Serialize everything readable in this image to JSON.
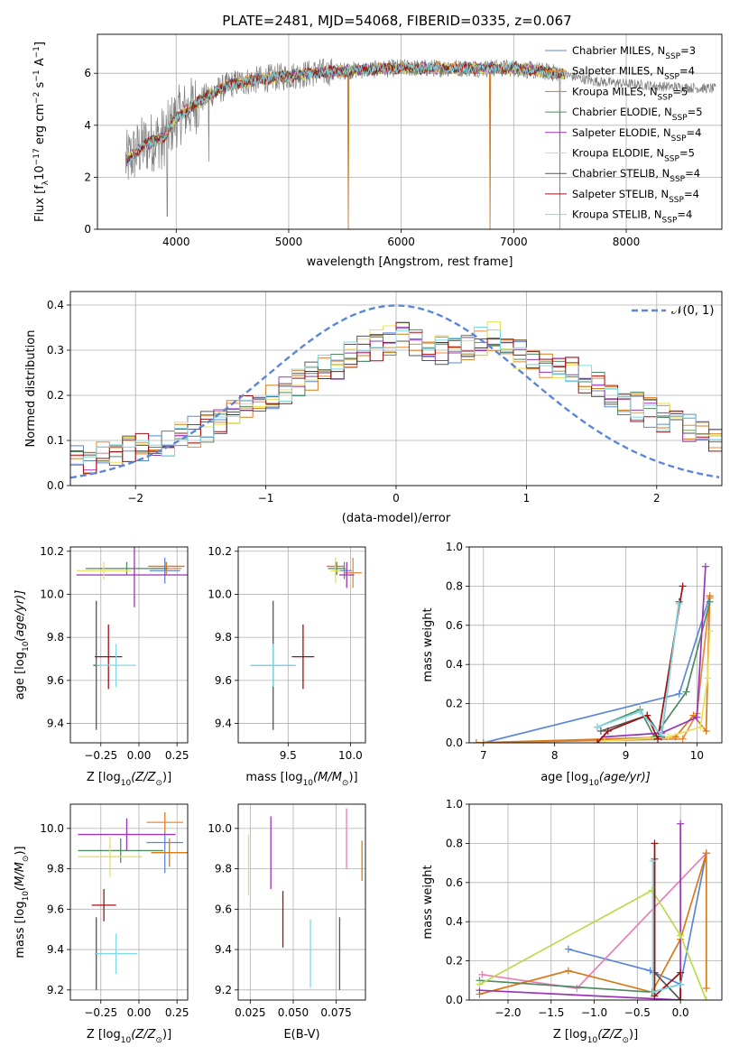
{
  "colors": {
    "Chabrier MILES": "#5b87d6",
    "Salpeter MILES": "#e8883a",
    "Kroupa MILES": "#d67a1a",
    "Chabrier ELODIE": "#4f8a62",
    "Salpeter ELODIE": "#9b34b8",
    "Kroupa ELODIE": "#e8e05a",
    "Chabrier STELIB": "#555555",
    "Salpeter STELIB": "#a01010",
    "Kroupa STELIB": "#7fd8e6",
    "Kroupa ELODIE line": "#b8dc4a",
    "Salpeter MILES pink": "#e87fb8",
    "data": "#808080",
    "gaussian": "#5b87d6"
  },
  "chart_data": [
    {
      "id": "spectrum",
      "type": "line",
      "title": "PLATE=2481, MJD=54068, FIBERID=0335, z=0.067",
      "xlabel": "wavelength [Angstrom, rest frame]",
      "ylabel": "Flux [f",
      "ylabel_sub": "λ",
      "ylabel_rest": "10",
      "ylabel_exp1": "−17",
      "ylabel_mid": " erg cm",
      "ylabel_exp2": "−2",
      "ylabel_mid2": " s",
      "ylabel_exp3": "−1",
      "ylabel_end": " A",
      "ylabel_exp4": "−1",
      "ylabel_close": "]",
      "xlim": [
        3300,
        8850
      ],
      "ylim": [
        0,
        7.5
      ],
      "xticks": [
        4000,
        5000,
        6000,
        7000,
        8000
      ],
      "yticks": [
        0,
        2,
        4,
        6
      ],
      "legend_position": "right",
      "legend": [
        {
          "pre": "Chabrier MILES, N",
          "sub": "SSP",
          "post": "=3"
        },
        {
          "pre": "Salpeter MILES, N",
          "sub": "SSP",
          "post": "=4"
        },
        {
          "pre": "Kroupa MILES, N",
          "sub": "SSP",
          "post": "=5"
        },
        {
          "pre": "Chabrier ELODIE, N",
          "sub": "SSP",
          "post": "=5"
        },
        {
          "pre": "Salpeter ELODIE, N",
          "sub": "SSP",
          "post": "=4"
        },
        {
          "pre": "Kroupa ELODIE, N",
          "sub": "SSP",
          "post": "=5"
        },
        {
          "pre": "Chabrier STELIB, N",
          "sub": "SSP",
          "post": "=4"
        },
        {
          "pre": "Salpeter STELIB, N",
          "sub": "SSP",
          "post": "=4"
        },
        {
          "pre": "Kroupa STELIB, N",
          "sub": "SSP",
          "post": "=4"
        }
      ],
      "continuum": [
        [
          3550,
          2.6
        ],
        [
          3700,
          3.2
        ],
        [
          3900,
          3.6
        ],
        [
          4000,
          4.3
        ],
        [
          4100,
          4.6
        ],
        [
          4300,
          5.2
        ],
        [
          4500,
          5.6
        ],
        [
          4800,
          5.8
        ],
        [
          5000,
          5.9
        ],
        [
          5200,
          6.0
        ],
        [
          5500,
          6.1
        ],
        [
          6000,
          6.2
        ],
        [
          6500,
          6.2
        ],
        [
          7000,
          6.2
        ],
        [
          7400,
          6.0
        ],
        [
          7700,
          5.7
        ],
        [
          8000,
          5.6
        ],
        [
          8300,
          5.5
        ],
        [
          8800,
          5.4
        ]
      ],
      "model_end": 7450,
      "data_spikes": [
        [
          5530,
          0.0
        ],
        [
          6790,
          0.0
        ],
        [
          7410,
          0.0
        ],
        [
          3920,
          0.5
        ],
        [
          4290,
          2.6
        ],
        [
          3870,
          2.3
        ]
      ]
    },
    {
      "id": "residual-histogram",
      "type": "area",
      "xlabel": "(data-model)/error",
      "ylabel": "Normed distribution",
      "xlim": [
        -2.5,
        2.5
      ],
      "ylim": [
        0,
        0.43
      ],
      "xticks": [
        -2,
        -1,
        0,
        1,
        2
      ],
      "xtick_labels": [
        "−2",
        "−1",
        "0",
        "1",
        "2"
      ],
      "yticks": [
        0.0,
        0.1,
        0.2,
        0.3,
        0.4
      ],
      "ytick_labels": [
        "0.0",
        "0.1",
        "0.2",
        "0.3",
        "0.4"
      ],
      "gaussian_label": "𝒩(0, 1)",
      "legend_position": "top-right",
      "bin_width": 0.1,
      "bin_start": -2.5,
      "base_profile": [
        0.055,
        0.06,
        0.065,
        0.07,
        0.075,
        0.085,
        0.095,
        0.1,
        0.11,
        0.12,
        0.13,
        0.14,
        0.155,
        0.17,
        0.185,
        0.2,
        0.21,
        0.225,
        0.24,
        0.255,
        0.27,
        0.285,
        0.3,
        0.31,
        0.32,
        0.33,
        0.32,
        0.31,
        0.3,
        0.295,
        0.31,
        0.32,
        0.33,
        0.3,
        0.29,
        0.28,
        0.27,
        0.26,
        0.25,
        0.24,
        0.22,
        0.205,
        0.19,
        0.175,
        0.16,
        0.15,
        0.14,
        0.13,
        0.12,
        0.105,
        0.1
      ]
    },
    {
      "id": "age-vs-Z",
      "type": "scatter",
      "xlabel_pre": "Z [log",
      "xlabel_sub": "10",
      "xlabel_post": "(Z/Z",
      "xlabel_sun": "⊙",
      "xlabel_end": ")]",
      "ylabel_pre": "age  [log",
      "ylabel_sub": "10",
      "ylabel_post": "(age/yr)]",
      "xlim": [
        -0.45,
        0.32
      ],
      "ylim": [
        9.31,
        10.22
      ],
      "xticks": [
        -0.25,
        0.0,
        0.25
      ],
      "xtick_labels": [
        "−0.25",
        "0.00",
        "0.25"
      ],
      "yticks": [
        9.4,
        9.6,
        9.8,
        10.0,
        10.2
      ],
      "ytick_labels": [
        "9.4",
        "9.6",
        "9.8",
        "10.0",
        "10.2"
      ],
      "points": [
        {
          "series": "Chabrier MILES",
          "x": 0.17,
          "y": 10.11,
          "xerr": 0.1,
          "yerr": 0.06
        },
        {
          "series": "Salpeter MILES",
          "x": 0.18,
          "y": 10.12,
          "xerr": 0.1,
          "yerr": 0.03
        },
        {
          "series": "Kroupa MILES",
          "x": 0.18,
          "y": 10.13,
          "xerr": 0.12,
          "yerr": 0.02
        },
        {
          "series": "Chabrier ELODIE",
          "x": -0.08,
          "y": 10.12,
          "xerr": 0.27,
          "yerr": 0.03
        },
        {
          "series": "Salpeter ELODIE",
          "x": -0.03,
          "y": 10.09,
          "xerr": 0.38,
          "yerr": 0.15
        },
        {
          "series": "Kroupa ELODIE",
          "x": -0.23,
          "y": 10.11,
          "xerr": 0.18,
          "yerr": 0.04
        },
        {
          "series": "Chabrier STELIB",
          "x": -0.28,
          "y": 9.67,
          "xerr": 0.02,
          "yerr": 0.3
        },
        {
          "series": "Salpeter STELIB",
          "x": -0.2,
          "y": 9.71,
          "xerr": 0.09,
          "yerr": 0.15
        },
        {
          "series": "Kroupa STELIB",
          "x": -0.15,
          "y": 9.67,
          "xerr": 0.13,
          "yerr": 0.1
        }
      ]
    },
    {
      "id": "age-vs-mass",
      "type": "scatter",
      "xlabel_pre": "mass [log",
      "xlabel_sub": "10",
      "xlabel_post": "(M/M",
      "xlabel_sun": "⊙",
      "xlabel_end": ")]",
      "xlim": [
        9.1,
        10.12
      ],
      "ylim": [
        9.31,
        10.22
      ],
      "xticks": [
        9.5,
        10.0
      ],
      "xtick_labels": [
        "9.5",
        "10.0"
      ],
      "yticks": [
        9.4,
        9.6,
        9.8,
        10.0,
        10.2
      ],
      "ytick_labels": [
        "9.4",
        "9.6",
        "9.8",
        "10.0",
        "10.2"
      ],
      "points": [
        {
          "series": "Chabrier MILES",
          "x": 9.95,
          "y": 10.11,
          "xerr": 0.06,
          "yerr": 0.04
        },
        {
          "series": "Salpeter MILES",
          "x": 10.02,
          "y": 10.1,
          "xerr": 0.07,
          "yerr": 0.07
        },
        {
          "series": "Kroupa MILES",
          "x": 9.88,
          "y": 10.13,
          "xerr": 0.07,
          "yerr": 0.02
        },
        {
          "series": "Chabrier ELODIE",
          "x": 9.89,
          "y": 10.12,
          "xerr": 0.07,
          "yerr": 0.03
        },
        {
          "series": "Salpeter ELODIE",
          "x": 9.97,
          "y": 10.09,
          "xerr": 0.06,
          "yerr": 0.06
        },
        {
          "series": "Kroupa ELODIE",
          "x": 9.88,
          "y": 10.11,
          "xerr": 0.04,
          "yerr": 0.06
        },
        {
          "series": "Chabrier STELIB",
          "x": 9.38,
          "y": 9.67,
          "xerr": 0.18,
          "yerr": 0.3
        },
        {
          "series": "Salpeter STELIB",
          "x": 9.62,
          "y": 9.71,
          "xerr": 0.09,
          "yerr": 0.15
        },
        {
          "series": "Kroupa STELIB",
          "x": 9.38,
          "y": 9.67,
          "xerr": 0.18,
          "yerr": 0.1
        }
      ]
    },
    {
      "id": "mass-weight-vs-age",
      "type": "line",
      "xlabel_pre": "age  [log",
      "xlabel_sub": "10",
      "xlabel_post": "(age/yr)]",
      "ylabel": "mass weight",
      "xlim": [
        6.8,
        10.35
      ],
      "ylim": [
        0.0,
        1.0
      ],
      "xticks": [
        7,
        8,
        9,
        10
      ],
      "xtick_labels": [
        "7",
        "8",
        "9",
        "10"
      ],
      "yticks": [
        0.0,
        0.2,
        0.4,
        0.6,
        0.8,
        1.0
      ],
      "ytick_labels": [
        "0.0",
        "0.2",
        "0.4",
        "0.6",
        "0.8",
        "1.0"
      ],
      "series": [
        {
          "name": "Chabrier MILES",
          "x": [
            7.0,
            9.75,
            10.18
          ],
          "y": [
            0.0,
            0.25,
            0.75
          ]
        },
        {
          "name": "Salpeter MILES",
          "x": [
            6.9,
            9.8,
            10.0,
            10.18
          ],
          "y": [
            0.0,
            0.02,
            0.15,
            0.74
          ]
        },
        {
          "name": "Kroupa MILES",
          "x": [
            6.9,
            9.7,
            9.95,
            10.13,
            10.18
          ],
          "y": [
            0.0,
            0.03,
            0.14,
            0.06,
            0.75
          ]
        },
        {
          "name": "Chabrier ELODIE",
          "x": [
            8.6,
            9.2,
            9.4,
            9.85,
            10.18
          ],
          "y": [
            0.08,
            0.17,
            0.03,
            0.26,
            0.72
          ]
        },
        {
          "name": "Salpeter ELODIE",
          "x": [
            8.7,
            9.5,
            10.0,
            10.12
          ],
          "y": [
            0.03,
            0.05,
            0.13,
            0.9
          ]
        },
        {
          "name": "Kroupa ELODIE",
          "x": [
            8.7,
            9.6,
            10.05,
            10.15,
            10.18
          ],
          "y": [
            0.01,
            0.03,
            0.08,
            0.33,
            0.57
          ]
        },
        {
          "name": "Chabrier STELIB",
          "x": [
            8.65,
            9.3,
            9.5,
            9.75
          ],
          "y": [
            0.06,
            0.14,
            0.03,
            0.72
          ]
        },
        {
          "name": "Salpeter STELIB",
          "x": [
            8.6,
            8.75,
            9.3,
            9.45,
            9.8
          ],
          "y": [
            0.0,
            0.06,
            0.14,
            0.02,
            0.8
          ]
        },
        {
          "name": "Kroupa STELIB",
          "x": [
            8.6,
            9.2,
            9.5,
            9.75
          ],
          "y": [
            0.08,
            0.16,
            0.04,
            0.71
          ]
        }
      ]
    },
    {
      "id": "mass-vs-Z",
      "type": "scatter",
      "xlabel_pre": "Z [log",
      "xlabel_sub": "10",
      "xlabel_post": "(Z/Z",
      "xlabel_sun": "⊙",
      "xlabel_end": ")]",
      "ylabel_pre": "mass [log",
      "ylabel_sub": "10",
      "ylabel_post": "(M/M",
      "ylabel_sun": "⊙",
      "ylabel_end": ")]",
      "xlim": [
        -0.45,
        0.32
      ],
      "ylim": [
        9.15,
        10.12
      ],
      "xticks": [
        -0.25,
        0.0,
        0.25
      ],
      "xtick_labels": [
        "−0.25",
        "0.00",
        "0.25"
      ],
      "yticks": [
        9.2,
        9.4,
        9.6,
        9.8,
        10.0
      ],
      "ytick_labels": [
        "9.2",
        "9.4",
        "9.6",
        "9.8",
        "10.0"
      ],
      "points": [
        {
          "series": "Chabrier MILES",
          "x": 0.17,
          "y": 9.93,
          "xerr": 0.12,
          "yerr": 0.15
        },
        {
          "series": "Salpeter MILES",
          "x": 0.17,
          "y": 10.03,
          "xerr": 0.12,
          "yerr": 0.05
        },
        {
          "series": "Kroupa MILES",
          "x": 0.2,
          "y": 9.88,
          "xerr": 0.12,
          "yerr": 0.07
        },
        {
          "series": "Chabrier ELODIE",
          "x": -0.12,
          "y": 9.89,
          "xerr": 0.28,
          "yerr": 0.06
        },
        {
          "series": "Salpeter ELODIE",
          "x": -0.08,
          "y": 9.97,
          "xerr": 0.32,
          "yerr": 0.08
        },
        {
          "series": "Kroupa ELODIE",
          "x": -0.19,
          "y": 9.86,
          "xerr": 0.21,
          "yerr": 0.1
        },
        {
          "series": "Chabrier STELIB",
          "x": -0.28,
          "y": 9.38,
          "xerr": 0.01,
          "yerr": 0.18
        },
        {
          "series": "Salpeter STELIB",
          "x": -0.23,
          "y": 9.62,
          "xerr": 0.08,
          "yerr": 0.08
        },
        {
          "series": "Kroupa STELIB",
          "x": -0.15,
          "y": 9.38,
          "xerr": 0.14,
          "yerr": 0.1
        }
      ]
    },
    {
      "id": "mass-vs-EBV",
      "type": "scatter",
      "xlabel": "E(B-V)",
      "xlim": [
        0.018,
        0.092
      ],
      "ylim": [
        9.15,
        10.12
      ],
      "xticks": [
        0.025,
        0.05,
        0.075
      ],
      "xtick_labels": [
        "0.025",
        "0.050",
        "0.075"
      ],
      "yticks": [
        9.2,
        9.4,
        9.6,
        9.8,
        10.0
      ],
      "ytick_labels": [
        "9.2",
        "9.4",
        "9.6",
        "9.8",
        "10.0"
      ],
      "points": [
        {
          "series": "Kroupa ELODIE",
          "x": 0.024,
          "y": 9.82,
          "yerr": 0.15
        },
        {
          "series": "Salpeter ELODIE",
          "x": 0.037,
          "y": 9.88,
          "yerr": 0.18
        },
        {
          "series": "Salpeter STELIB",
          "x": 0.044,
          "y": 9.55,
          "yerr": 0.14
        },
        {
          "series": "Kroupa STELIB",
          "x": 0.06,
          "y": 9.38,
          "yerr": 0.17
        },
        {
          "series": "Chabrier STELIB",
          "x": 0.077,
          "y": 9.38,
          "yerr": 0.18
        },
        {
          "series": "Salpeter MILES pink",
          "x": 0.081,
          "y": 9.95,
          "yerr": 0.15
        },
        {
          "series": "Kroupa MILES",
          "x": 0.09,
          "y": 9.84,
          "yerr": 0.1
        }
      ]
    },
    {
      "id": "mass-weight-vs-Z",
      "type": "line",
      "xlabel_pre": "Z [log",
      "xlabel_sub": "10",
      "xlabel_post": "(Z/Z",
      "xlabel_sun": "⊙",
      "xlabel_end": ")]",
      "ylabel": "mass weight",
      "xlim": [
        -2.45,
        0.48
      ],
      "ylim": [
        0.0,
        1.0
      ],
      "xticks": [
        -2.0,
        -1.5,
        -1.0,
        -0.5,
        0.0
      ],
      "xtick_labels": [
        "−2.0",
        "−1.5",
        "−1.0",
        "−0.5",
        "0.0"
      ],
      "yticks": [
        0.0,
        0.2,
        0.4,
        0.6,
        0.8,
        1.0
      ],
      "ytick_labels": [
        "0.0",
        "0.2",
        "0.4",
        "0.6",
        "0.8",
        "1.0"
      ],
      "series": [
        {
          "name": "Chabrier MILES",
          "x": [
            -1.3,
            -0.35,
            0.0,
            0.3
          ],
          "y": [
            0.26,
            0.15,
            0.08,
            0.75
          ]
        },
        {
          "name": "Salpeter MILES pink",
          "x": [
            -2.3,
            -1.2,
            0.3
          ],
          "y": [
            0.13,
            0.06,
            0.75
          ]
        },
        {
          "name": "Kroupa MILES",
          "x": [
            -2.33,
            -1.3,
            -0.33,
            0.0,
            0.3,
            0.3
          ],
          "y": [
            0.03,
            0.15,
            0.04,
            0.31,
            0.75,
            0.06
          ]
        },
        {
          "name": "Chabrier ELODIE",
          "x": [
            -2.33,
            -0.33,
            0.0
          ],
          "y": [
            0.1,
            0.04,
            0.08
          ]
        },
        {
          "name": "Salpeter ELODIE",
          "x": [
            -2.33,
            0.0,
            0.0
          ],
          "y": [
            0.05,
            0.0,
            0.9
          ]
        },
        {
          "name": "Kroupa ELODIE line",
          "x": [
            -2.33,
            -0.33,
            0.0,
            0.3
          ],
          "y": [
            0.08,
            0.56,
            0.33,
            0.0
          ]
        },
        {
          "name": "Chabrier STELIB",
          "x": [
            -0.3,
            -0.3,
            0.0
          ],
          "y": [
            0.72,
            0.14,
            0.0
          ]
        },
        {
          "name": "Salpeter STELIB",
          "x": [
            -0.3,
            -0.3,
            0.0,
            0.0
          ],
          "y": [
            0.8,
            0.02,
            0.14,
            0.0
          ]
        },
        {
          "name": "Kroupa STELIB",
          "x": [
            -0.32,
            -0.32,
            0.0
          ],
          "y": [
            0.71,
            0.04,
            0.08
          ]
        }
      ]
    }
  ]
}
